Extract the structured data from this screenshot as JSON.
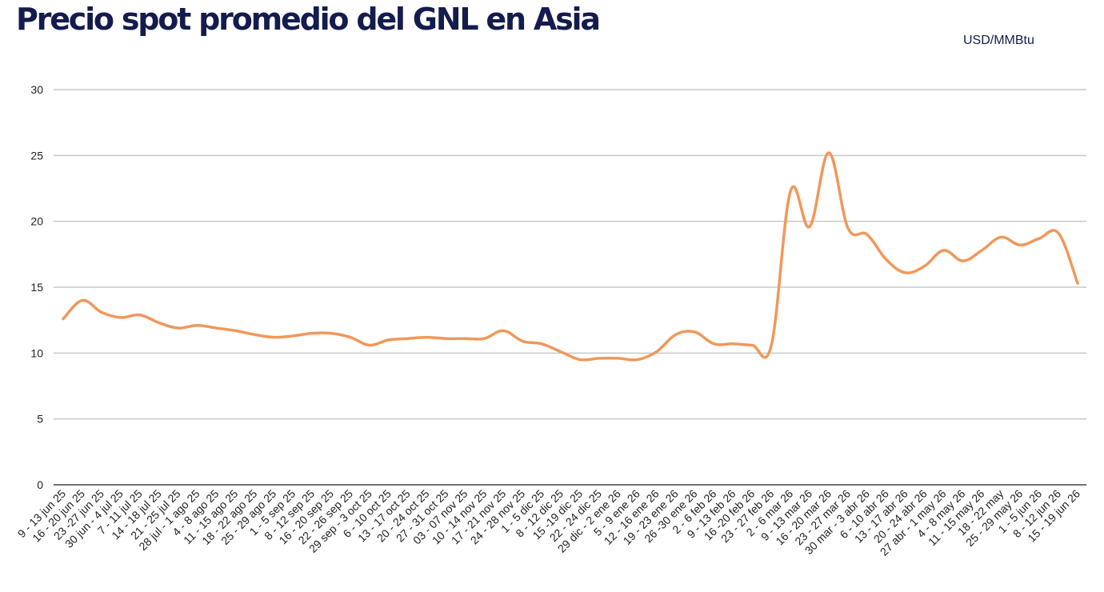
{
  "title": "Precio spot promedio del GNL en Asia",
  "unit_label": "USD/MMBtu",
  "colors": {
    "title": "#141b4d",
    "line": "#f0985a",
    "grid": "#c8c8c8",
    "axis": "#444444"
  },
  "chart_data": {
    "type": "line",
    "title": "Precio spot promedio del GNL en Asia",
    "xlabel": "",
    "ylabel": "USD/MMBtu",
    "ylim": [
      0,
      30
    ],
    "yticks": [
      0,
      5,
      10,
      15,
      20,
      25,
      30
    ],
    "grid": true,
    "legend": "none",
    "categories": [
      "9 - 13 jun 25",
      "16 - 20 jun 25",
      "23 -27 jun 25",
      "30 jun - 4 jul 25",
      "7 - 11 jul 25",
      "14 - 18 jul 25",
      "21 - 25 jul 25",
      "28 jul - 1 ago 25",
      "4 - 8 ago 25",
      "11 - 15 ago 25",
      "18 - 22 ago 25",
      "25 - 29 ago 25",
      "1 - 5 sep 25",
      "8 - 12 sep 25",
      "16 - 20 sep 25",
      "22 - 26 sep 25",
      "29 sep - 3 oct 25",
      "6 - 10 oct 25",
      "13 - 17 oct 25",
      "20 - 24 oct 25",
      "27 - 31 oct 25",
      "03 - 07 nov 25",
      "10 - 14 nov 25",
      "17 - 21 nov 25",
      "24 - 28 nov 25",
      "1 - 5 dic 25",
      "8 - 12 dic 25",
      "15 -19 dic 25",
      "22 - 24 dic 25",
      "29 dic - 2 ene 26",
      "5 - 9 ene 26",
      "12 - 16 ene 26",
      "19 - 23 ene 26",
      "26 -30 ene 26",
      "2 - 6 feb 26",
      "9 - 13 feb 26",
      "16 -20 feb 26",
      "23 - 27 feb 26",
      "2 - 6 mar 26",
      "9 - 13 mar 26",
      "16 - 20 mar 26",
      "23 - 27 mar 26",
      "30 mar - 3 abr 26",
      "6 - 10 abr 26",
      "13 - 17 abr 26",
      "20 - 24 abr 26",
      "27 abr - 1 may 26",
      "4 - 8 may 26",
      "11 - 15 may 26",
      "18 - 22 may",
      "25 - 29 may 26",
      "1 - 5 jun 26",
      "8 - 12 jun 26",
      "15 - 19 jun 26"
    ],
    "series": [
      {
        "values": [
          12.6,
          14.0,
          13.1,
          12.7,
          12.9,
          12.3,
          11.9,
          12.1,
          11.9,
          11.7,
          11.4,
          11.2,
          11.3,
          11.5,
          11.5,
          11.2,
          10.6,
          11.0,
          11.1,
          11.2,
          11.1,
          11.1,
          11.1,
          11.7,
          10.9,
          10.7,
          10.1,
          9.5,
          9.6,
          9.6,
          9.5,
          10.1,
          11.4,
          11.6,
          10.7,
          10.7,
          10.6,
          10.6,
          22.3,
          19.6,
          25.2,
          19.5,
          19.0,
          17.1,
          16.1,
          16.6,
          17.8,
          17.0,
          17.8,
          18.8,
          18.2,
          18.7,
          19.1,
          15.3
        ]
      }
    ]
  }
}
